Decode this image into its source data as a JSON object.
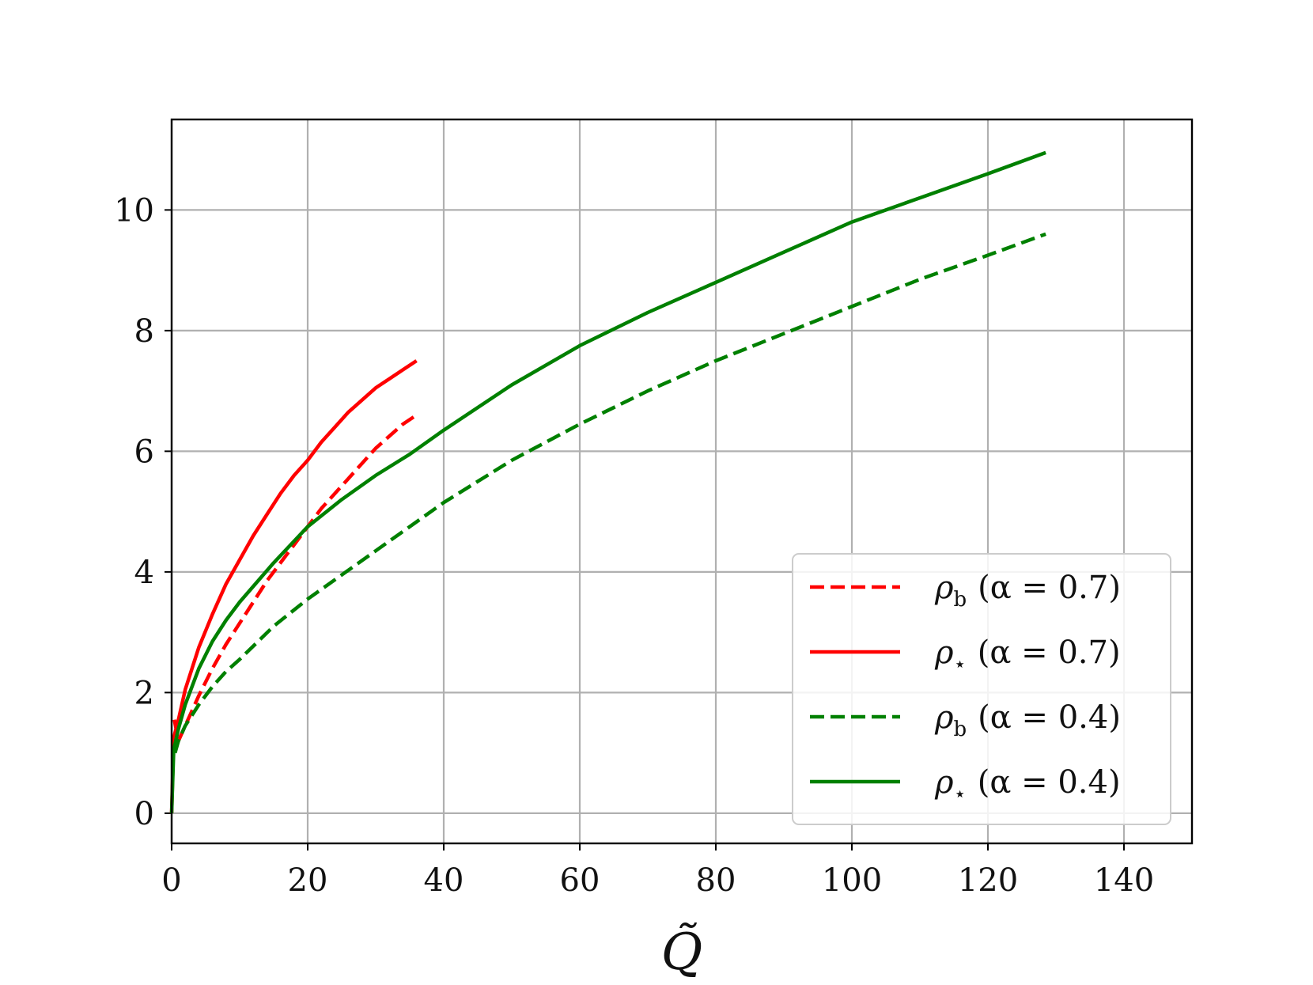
{
  "chart_data": {
    "type": "line",
    "xlabel": "Q̃",
    "ylabel": "",
    "xlim": [
      0,
      150
    ],
    "ylim": [
      -0.5,
      11.5
    ],
    "x_ticks": [
      "0",
      "20",
      "40",
      "60",
      "80",
      "100",
      "120",
      "140"
    ],
    "y_ticks": [
      "0",
      "2",
      "4",
      "6",
      "8",
      "10"
    ],
    "grid": true,
    "legend_position": "bottom-right",
    "colors": {
      "red": "#ff0000",
      "green": "#008000"
    },
    "series": [
      {
        "symbol": "ρ",
        "subscript": "b",
        "param": "(α = 0.7)",
        "color": "#ff0000",
        "linestyle": "dashed",
        "x": [
          0.4,
          1,
          2,
          4,
          6,
          8,
          10,
          12,
          14,
          16,
          18,
          20,
          22,
          24,
          26,
          28,
          30,
          32,
          34,
          36
        ],
        "y": [
          1.55,
          1.2,
          1.45,
          1.95,
          2.4,
          2.8,
          3.15,
          3.5,
          3.85,
          4.15,
          4.45,
          4.75,
          5.05,
          5.3,
          5.55,
          5.8,
          6.05,
          6.25,
          6.45,
          6.6
        ]
      },
      {
        "symbol": "ρ",
        "subscript": "⋆",
        "param": "(α = 0.7)",
        "color": "#ff0000",
        "linestyle": "solid",
        "x": [
          0,
          0.3,
          1,
          2,
          4,
          6,
          8,
          10,
          12,
          14,
          16,
          18,
          20,
          22,
          24,
          26,
          28,
          30,
          32,
          34,
          36
        ],
        "y": [
          0,
          1.25,
          1.55,
          2.05,
          2.75,
          3.3,
          3.8,
          4.2,
          4.6,
          4.95,
          5.3,
          5.6,
          5.85,
          6.15,
          6.4,
          6.65,
          6.85,
          7.05,
          7.2,
          7.35,
          7.5
        ]
      },
      {
        "symbol": "ρ",
        "subscript": "b",
        "param": "(α = 0.4)",
        "color": "#008000",
        "linestyle": "dashed",
        "x": [
          0.5,
          1,
          2,
          4,
          6,
          8,
          10,
          15,
          20,
          25,
          30,
          40,
          50,
          60,
          70,
          80,
          90,
          100,
          110,
          120,
          128.5
        ],
        "y": [
          1.0,
          1.2,
          1.45,
          1.8,
          2.1,
          2.35,
          2.55,
          3.1,
          3.55,
          3.95,
          4.35,
          5.15,
          5.85,
          6.45,
          7.0,
          7.5,
          7.95,
          8.4,
          8.85,
          9.25,
          9.6
        ]
      },
      {
        "symbol": "ρ",
        "subscript": "⋆",
        "param": "(α = 0.4)",
        "color": "#008000",
        "linestyle": "solid",
        "x": [
          0,
          0.3,
          1,
          2,
          4,
          6,
          8,
          10,
          15,
          20,
          25,
          30,
          35,
          40,
          50,
          60,
          70,
          80,
          90,
          100,
          110,
          120,
          128.5
        ],
        "y": [
          0,
          1.05,
          1.4,
          1.8,
          2.4,
          2.85,
          3.2,
          3.5,
          4.15,
          4.75,
          5.2,
          5.6,
          5.95,
          6.35,
          7.1,
          7.75,
          8.3,
          8.8,
          9.3,
          9.8,
          10.2,
          10.6,
          10.95
        ]
      }
    ]
  }
}
